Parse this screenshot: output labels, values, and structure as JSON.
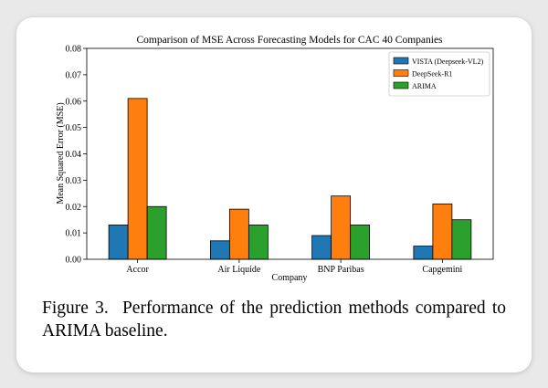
{
  "colors": {
    "series": [
      "#1f77b4",
      "#ff7f0e",
      "#2ca02c"
    ],
    "card": "#ffffff",
    "background": "#e9e9e9"
  },
  "figure": {
    "label": "Figure 3.",
    "caption": "Performance of the prediction methods compared to ARIMA baseline."
  },
  "chart_data": {
    "type": "bar",
    "title": "Comparison of MSE Across Forecasting Models for CAC 40 Companies",
    "xlabel": "Company",
    "ylabel": "Mean Squared Error (MSE)",
    "categories": [
      "Accor",
      "Air Liquide",
      "BNP Paribas",
      "Capgemini"
    ],
    "series": [
      {
        "name": "VISTA (Deepseek-VL2)",
        "values": [
          0.013,
          0.007,
          0.009,
          0.005
        ]
      },
      {
        "name": "DeepSeek-R1",
        "values": [
          0.061,
          0.019,
          0.024,
          0.021
        ]
      },
      {
        "name": "ARIMA",
        "values": [
          0.02,
          0.013,
          0.013,
          0.015
        ]
      }
    ],
    "ylim": [
      0,
      0.08
    ],
    "yticks": [
      "0.00",
      "0.01",
      "0.02",
      "0.03",
      "0.04",
      "0.05",
      "0.06",
      "0.07",
      "0.08"
    ],
    "legend_position": "top-right",
    "grid": false
  }
}
